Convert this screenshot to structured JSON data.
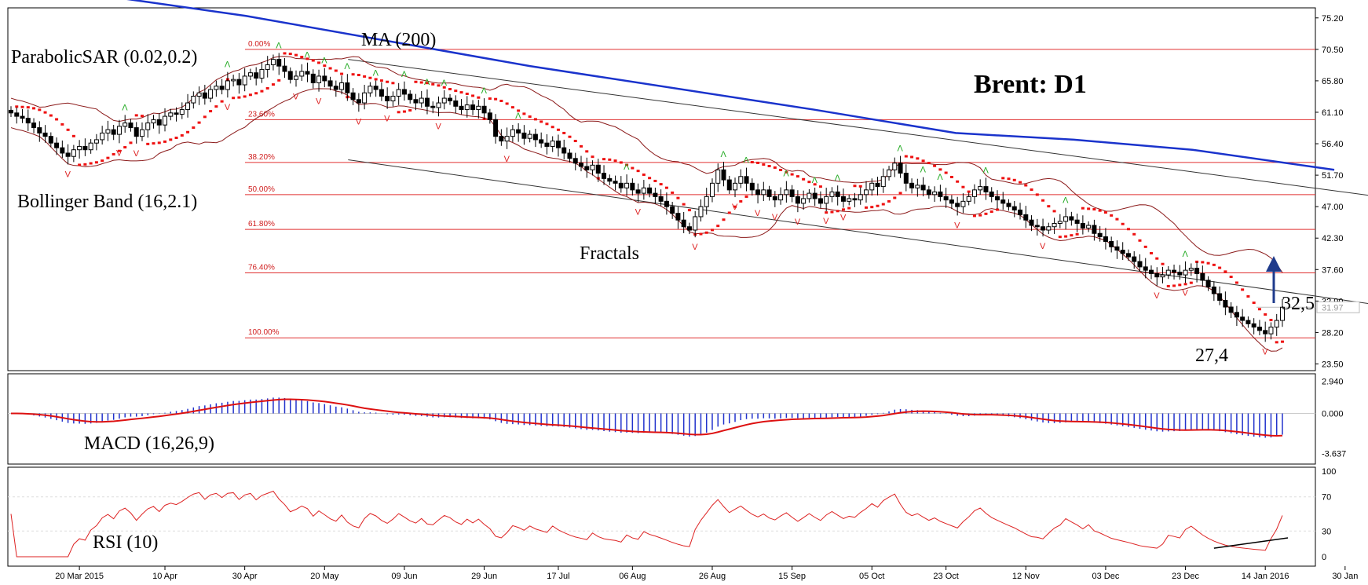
{
  "chart_data": {
    "type": "candlestick",
    "title": "Brent: D1",
    "price_axis": {
      "labels": [
        "75.20",
        "70.50",
        "65.80",
        "61.10",
        "56.40",
        "51.70",
        "47.00",
        "42.30",
        "37.60",
        "32.90",
        "28.20",
        "23.50"
      ],
      "ylim": [
        22.5,
        76.7
      ],
      "current_price": "31.97"
    },
    "macd_axis": {
      "labels": [
        "2.940",
        "0.000",
        "-3.637"
      ],
      "ylim": [
        -4.6,
        3.6
      ]
    },
    "rsi_axis": {
      "labels": [
        "100",
        "70",
        "30",
        "0"
      ],
      "ylim": [
        0,
        100
      ]
    },
    "x_labels": [
      "20 Mar 2015",
      "10 Apr",
      "30 Apr",
      "20 May",
      "09 Jun",
      "29 Jun",
      "17 Jul",
      "06 Aug",
      "26 Aug",
      "15 Sep",
      "05 Oct",
      "23 Oct",
      "12 Nov",
      "03 Dec",
      "23 Dec",
      "14 Jan 2016",
      "30 Jan"
    ],
    "fib_levels": [
      {
        "label": "0.00%",
        "value": 70.5
      },
      {
        "label": "23.60%",
        "value": 60.0
      },
      {
        "label": "38.20%",
        "value": 53.6
      },
      {
        "label": "50.00%",
        "value": 48.8
      },
      {
        "label": "61.80%",
        "value": 43.6
      },
      {
        "label": "76.40%",
        "value": 37.1
      },
      {
        "label": "100.00%",
        "value": 27.4
      }
    ],
    "annotations": {
      "sar": "ParabolicSAR (0.02,0.2)",
      "ma": "MA (200)",
      "bollinger": "Bollinger Band (16,2.1)",
      "fractals": "Fractals",
      "macd": "MACD (16,26,9)",
      "rsi": "RSI (10)",
      "target": "32,5",
      "low": "27,4"
    },
    "ma200": [
      [
        0,
        79.5
      ],
      [
        40,
        75.5
      ],
      [
        100,
        68.0
      ],
      [
        160,
        61.5
      ],
      [
        190,
        58.0
      ],
      [
        215,
        57.0
      ],
      [
        240,
        55.5
      ],
      [
        270,
        52.5
      ]
    ],
    "upper_channel": [
      [
        55,
        69.0
      ],
      [
        280,
        43.0
      ]
    ],
    "lower_channel": [
      [
        55,
        54.0
      ],
      [
        280,
        26.5
      ]
    ],
    "candles": [
      [
        0,
        61.0
      ],
      [
        1,
        60.5
      ],
      [
        2,
        60.2
      ],
      [
        3,
        59.5
      ],
      [
        4,
        58.8
      ],
      [
        5,
        58.0
      ],
      [
        6,
        57.5
      ],
      [
        7,
        56.5
      ],
      [
        8,
        55.8
      ],
      [
        9,
        55.0
      ],
      [
        10,
        54.5
      ],
      [
        11,
        55.5
      ],
      [
        12,
        56.0
      ],
      [
        13,
        55.5
      ],
      [
        14,
        56.5
      ],
      [
        15,
        57.0
      ],
      [
        16,
        58.0
      ],
      [
        17,
        58.5
      ],
      [
        18,
        57.8
      ],
      [
        19,
        59.0
      ],
      [
        20,
        59.5
      ],
      [
        21,
        58.8
      ],
      [
        22,
        57.5
      ],
      [
        23,
        58.5
      ],
      [
        24,
        59.5
      ],
      [
        25,
        60.0
      ],
      [
        26,
        59.2
      ],
      [
        27,
        60.5
      ],
      [
        28,
        61.0
      ],
      [
        29,
        60.8
      ],
      [
        30,
        61.5
      ],
      [
        31,
        62.5
      ],
      [
        32,
        63.5
      ],
      [
        33,
        64.0
      ],
      [
        34,
        63.2
      ],
      [
        35,
        64.5
      ],
      [
        36,
        65.0
      ],
      [
        37,
        64.5
      ],
      [
        38,
        65.8
      ],
      [
        39,
        66.0
      ],
      [
        40,
        65.2
      ],
      [
        41,
        66.5
      ],
      [
        42,
        67.0
      ],
      [
        43,
        66.2
      ],
      [
        44,
        67.5
      ],
      [
        45,
        68.2
      ],
      [
        46,
        69.0
      ],
      [
        47,
        68.0
      ],
      [
        48,
        67.2
      ],
      [
        49,
        66.0
      ],
      [
        50,
        66.5
      ],
      [
        51,
        67.2
      ],
      [
        52,
        66.8
      ],
      [
        53,
        65.5
      ],
      [
        54,
        66.5
      ],
      [
        55,
        65.8
      ],
      [
        56,
        65.0
      ],
      [
        57,
        64.5
      ],
      [
        58,
        65.5
      ],
      [
        59,
        64.0
      ],
      [
        60,
        63.0
      ],
      [
        61,
        62.5
      ],
      [
        62,
        64.0
      ],
      [
        63,
        65.0
      ],
      [
        64,
        64.5
      ],
      [
        65,
        63.5
      ],
      [
        66,
        62.8
      ],
      [
        67,
        63.5
      ],
      [
        68,
        64.5
      ],
      [
        69,
        63.8
      ],
      [
        70,
        63.0
      ],
      [
        71,
        62.5
      ],
      [
        72,
        63.2
      ],
      [
        73,
        62.0
      ],
      [
        74,
        61.8
      ],
      [
        75,
        62.5
      ],
      [
        76,
        63.2
      ],
      [
        77,
        62.8
      ],
      [
        78,
        62.0
      ],
      [
        79,
        61.5
      ],
      [
        80,
        62.2
      ],
      [
        81,
        61.5
      ],
      [
        82,
        62.0
      ],
      [
        83,
        61.0
      ],
      [
        84,
        60.0
      ],
      [
        85,
        57.5
      ],
      [
        86,
        56.8
      ],
      [
        87,
        57.5
      ],
      [
        88,
        58.5
      ],
      [
        89,
        58.0
      ],
      [
        90,
        57.2
      ],
      [
        91,
        57.8
      ],
      [
        92,
        57.0
      ],
      [
        93,
        56.5
      ],
      [
        94,
        56.0
      ],
      [
        95,
        56.8
      ],
      [
        96,
        55.8
      ],
      [
        97,
        55.0
      ],
      [
        98,
        54.2
      ],
      [
        99,
        53.5
      ],
      [
        100,
        53.0
      ],
      [
        101,
        52.5
      ],
      [
        102,
        53.2
      ],
      [
        103,
        52.0
      ],
      [
        104,
        51.2
      ],
      [
        105,
        50.8
      ],
      [
        106,
        50.5
      ],
      [
        107,
        49.8
      ],
      [
        108,
        50.5
      ],
      [
        109,
        49.5
      ],
      [
        110,
        49.0
      ],
      [
        111,
        49.8
      ],
      [
        112,
        49.0
      ],
      [
        113,
        48.5
      ],
      [
        114,
        47.8
      ],
      [
        115,
        47.0
      ],
      [
        116,
        46.0
      ],
      [
        117,
        45.0
      ],
      [
        118,
        44.0
      ],
      [
        119,
        43.5
      ],
      [
        120,
        45.5
      ],
      [
        121,
        47.0
      ],
      [
        122,
        48.5
      ],
      [
        123,
        50.5
      ],
      [
        124,
        52.5
      ],
      [
        125,
        51.0
      ],
      [
        126,
        49.5
      ],
      [
        127,
        50.5
      ],
      [
        128,
        51.5
      ],
      [
        129,
        50.5
      ],
      [
        130,
        49.5
      ],
      [
        131,
        48.8
      ],
      [
        132,
        49.5
      ],
      [
        133,
        48.5
      ],
      [
        134,
        48.0
      ],
      [
        135,
        48.8
      ],
      [
        136,
        49.5
      ],
      [
        137,
        48.5
      ],
      [
        138,
        47.5
      ],
      [
        139,
        48.2
      ],
      [
        140,
        49.0
      ],
      [
        141,
        48.2
      ],
      [
        142,
        47.5
      ],
      [
        143,
        48.5
      ],
      [
        144,
        49.2
      ],
      [
        145,
        48.5
      ],
      [
        146,
        47.8
      ],
      [
        147,
        48.2
      ],
      [
        148,
        48.0
      ],
      [
        149,
        48.8
      ],
      [
        150,
        49.5
      ],
      [
        151,
        50.5
      ],
      [
        152,
        50.0
      ],
      [
        153,
        51.5
      ],
      [
        154,
        52.5
      ],
      [
        155,
        53.5
      ],
      [
        156,
        52.0
      ],
      [
        157,
        50.5
      ],
      [
        158,
        49.8
      ],
      [
        159,
        50.2
      ],
      [
        160,
        49.5
      ],
      [
        161,
        48.8
      ],
      [
        162,
        49.2
      ],
      [
        163,
        48.5
      ],
      [
        164,
        48.0
      ],
      [
        165,
        47.5
      ],
      [
        166,
        47.0
      ],
      [
        167,
        47.8
      ],
      [
        168,
        48.5
      ],
      [
        169,
        49.5
      ],
      [
        170,
        50.0
      ],
      [
        171,
        49.2
      ],
      [
        172,
        48.5
      ],
      [
        173,
        48.0
      ],
      [
        174,
        47.5
      ],
      [
        175,
        47.0
      ],
      [
        176,
        46.5
      ],
      [
        177,
        45.8
      ],
      [
        178,
        45.0
      ],
      [
        179,
        44.2
      ],
      [
        180,
        44.0
      ],
      [
        181,
        43.5
      ],
      [
        182,
        44.0
      ],
      [
        183,
        44.5
      ],
      [
        184,
        44.8
      ],
      [
        185,
        45.5
      ],
      [
        186,
        45.0
      ],
      [
        187,
        44.5
      ],
      [
        188,
        43.8
      ],
      [
        189,
        44.2
      ],
      [
        190,
        43.0
      ],
      [
        191,
        42.5
      ],
      [
        192,
        41.8
      ],
      [
        193,
        41.0
      ],
      [
        194,
        40.5
      ],
      [
        195,
        40.0
      ],
      [
        196,
        39.5
      ],
      [
        197,
        38.8
      ],
      [
        198,
        38.0
      ],
      [
        199,
        37.5
      ],
      [
        200,
        37.0
      ],
      [
        201,
        36.5
      ],
      [
        202,
        36.8
      ],
      [
        203,
        37.5
      ],
      [
        204,
        37.2
      ],
      [
        205,
        36.8
      ],
      [
        206,
        37.5
      ],
      [
        207,
        37.8
      ],
      [
        208,
        37.0
      ],
      [
        209,
        36.0
      ],
      [
        210,
        35.0
      ],
      [
        211,
        34.0
      ],
      [
        212,
        33.0
      ],
      [
        213,
        32.0
      ],
      [
        214,
        31.2
      ],
      [
        215,
        30.5
      ],
      [
        216,
        30.0
      ],
      [
        217,
        29.5
      ],
      [
        218,
        29.0
      ],
      [
        219,
        28.5
      ],
      [
        220,
        28.0
      ],
      [
        221,
        29.0
      ],
      [
        222,
        30.0
      ],
      [
        223,
        31.97
      ]
    ]
  }
}
